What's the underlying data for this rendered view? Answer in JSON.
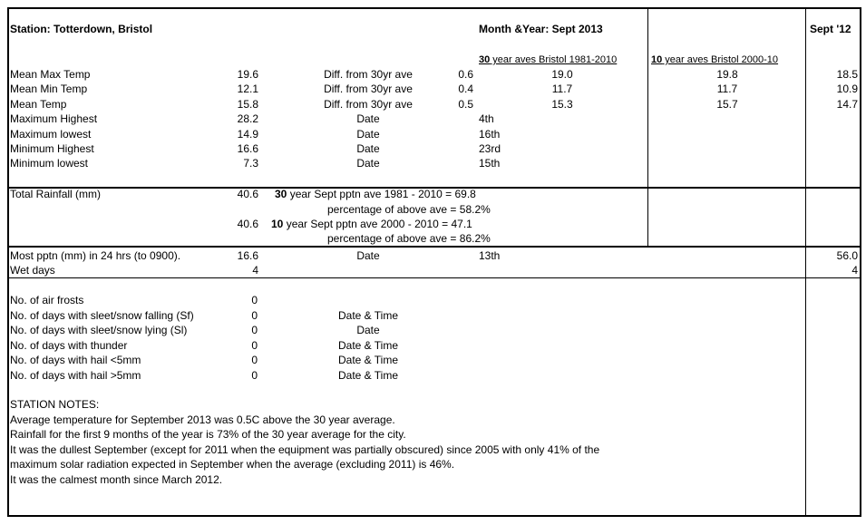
{
  "header": {
    "station": "Station: Totterdown, Bristol",
    "month_year": "Month &Year: Sept 2013",
    "prev_year": "Sept '12",
    "ave30_bold": "30",
    "ave30_rest": " year aves Bristol 1981-2010",
    "ave10_bold": "10",
    "ave10_rest": " year aves Bristol 2000-10"
  },
  "temps": [
    {
      "label": "Mean Max Temp",
      "value": "19.6",
      "col3": "Diff. from 30yr ave",
      "col4": "0.6",
      "ave30": "19.0",
      "ave10": "19.8",
      "prev": "18.5"
    },
    {
      "label": "Mean Min Temp",
      "value": "12.1",
      "col3": "Diff. from 30yr ave",
      "col4": "0.4",
      "ave30": "11.7",
      "ave10": "11.7",
      "prev": "10.9"
    },
    {
      "label": "Mean Temp",
      "value": "15.8",
      "col3": "Diff. from 30yr ave",
      "col4": "0.5",
      "ave30": "15.3",
      "ave10": "15.7",
      "prev": "14.7"
    },
    {
      "label": "Maximum Highest",
      "value": "28.2",
      "col3": "Date",
      "col4": "4th",
      "ave30": "",
      "ave10": "",
      "prev": ""
    },
    {
      "label": "Maximum lowest",
      "value": "14.9",
      "col3": "Date",
      "col4": "16th",
      "ave30": "",
      "ave10": "",
      "prev": ""
    },
    {
      "label": "Minimum Highest",
      "value": "16.6",
      "col3": "Date",
      "col4": "23rd",
      "ave30": "",
      "ave10": "",
      "prev": ""
    },
    {
      "label": "Minimum lowest",
      "value": "7.3",
      "col3": "Date",
      "col4": "15th",
      "ave30": "",
      "ave10": "",
      "prev": ""
    }
  ],
  "rain": {
    "label": "Total Rainfall (mm)",
    "value": "40.6",
    "ave30_bold": "30",
    "ave30_text": " year Sept pptn ave 1981 - 2010  = 69.8",
    "pct30": "percentage of above ave  = 58.2%",
    "value2": "40.6",
    "ave10_bold": "10",
    "ave10_text": " year Sept pptn ave 2000 - 2010 =    47.1",
    "pct10": "percentage of above ave  = 86.2%"
  },
  "pptn": {
    "label": "Most pptn (mm) in 24 hrs (to 0900).",
    "value": "16.6",
    "col3": "Date",
    "col4": "13th",
    "prev": "56.0",
    "wet_label": "Wet days",
    "wet_value": "4",
    "wet_prev": "4"
  },
  "counts": [
    {
      "label": "No. of air frosts",
      "value": "0",
      "col3": ""
    },
    {
      "label": "No. of days with sleet/snow falling (Sf)",
      "value": "0",
      "col3": "Date & Time"
    },
    {
      "label": "No. of days with sleet/snow lying (Sl)",
      "value": "0",
      "col3": "Date"
    },
    {
      "label": "No. of days with thunder",
      "value": "0",
      "col3": "Date & Time"
    },
    {
      "label": "No. of days with hail <5mm",
      "value": "0",
      "col3": "Date & Time"
    },
    {
      "label": "No. of days with hail >5mm",
      "value": "0",
      "col3": "Date & Time"
    }
  ],
  "notes": {
    "title": "STATION NOTES:",
    "lines": [
      "Average temperature for September 2013 was 0.5C above the 30 year average.",
      "Rainfall for the first 9 months of the year is 73% of the 30 year average for the city.",
      "It was the dullest September (except for 2011 when the equipment was partially obscured) since 2005 with only 41% of the",
      "maximum solar radiation expected in September when the average (excluding 2011) is 46%.",
      "It was the calmest month since March 2012."
    ]
  }
}
